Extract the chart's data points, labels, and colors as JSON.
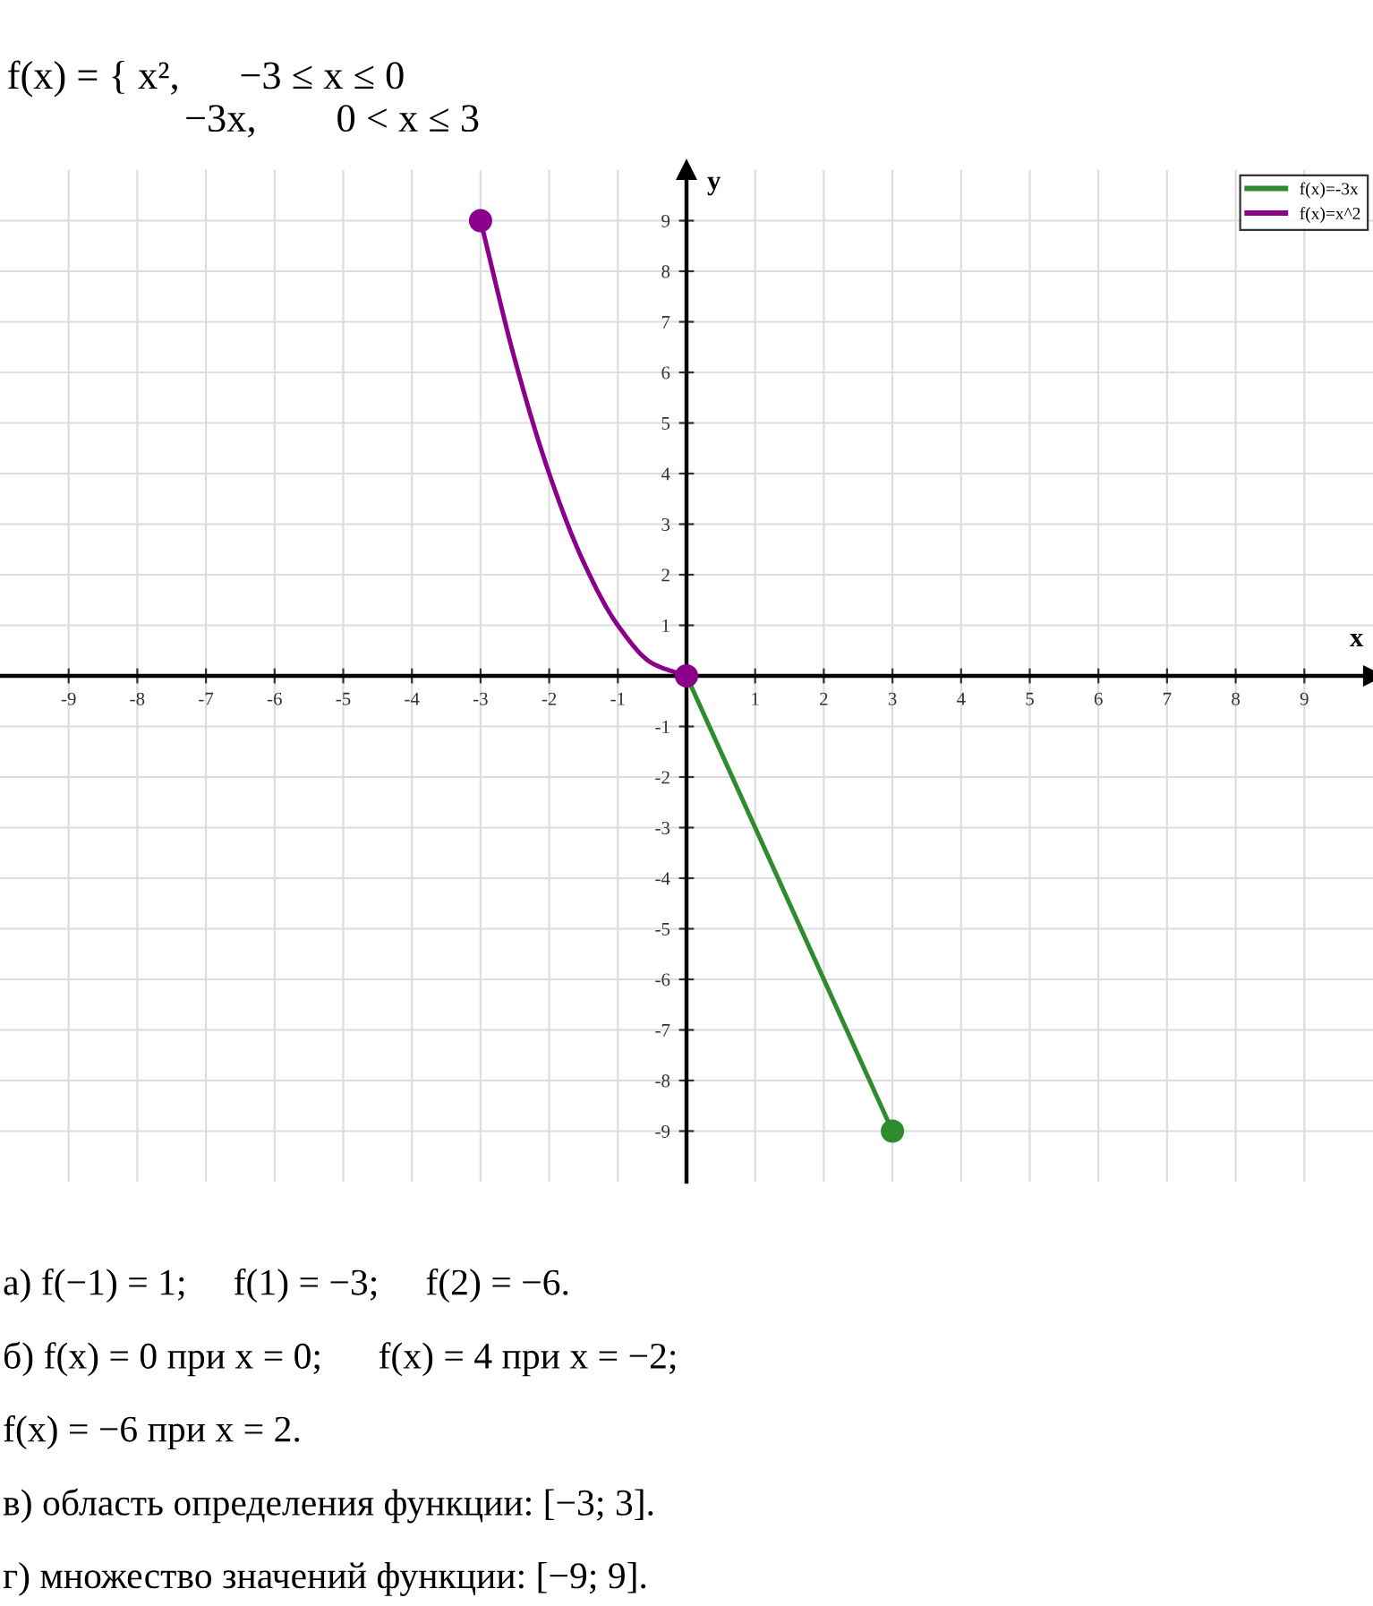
{
  "chart_data": {
    "type": "line",
    "title": "f(x) = { x²,      −3 ≤ x ≤ 0",
    "subtitle": "−3x,        0 < x ≤ 3",
    "xlabel": "x",
    "ylabel": "y",
    "xlim": [
      -10,
      10
    ],
    "ylim": [
      -10,
      10
    ],
    "xticks": [
      -9,
      -8,
      -7,
      -6,
      -5,
      -4,
      -3,
      -2,
      -1,
      1,
      2,
      3,
      4,
      5,
      6,
      7,
      8,
      9
    ],
    "yticks": [
      -9,
      -8,
      -7,
      -6,
      -5,
      -4,
      -3,
      -2,
      -1,
      1,
      2,
      3,
      4,
      5,
      6,
      7,
      8,
      9
    ],
    "grid": true,
    "legend": "top right",
    "series": [
      {
        "name": "f(x)=-3x",
        "color": "#2e8b2e",
        "x": [
          0,
          3
        ],
        "values": [
          0,
          -9
        ]
      },
      {
        "name": "f(x)=x^2",
        "color": "#8b008b",
        "x": [
          -3,
          -2.5,
          -2,
          -1.5,
          -1,
          -0.5,
          0
        ],
        "values": [
          9,
          6.25,
          4,
          2.25,
          1,
          0.25,
          0
        ]
      },
      {
        "type": "scatter",
        "color": "#2e8b2e",
        "x": [
          3
        ],
        "values": [
          -9
        ],
        "marker": "circle"
      },
      {
        "type": "scatter",
        "color": "#8b008b",
        "x": [
          -3,
          0
        ],
        "values": [
          9,
          0
        ],
        "marker": "circle"
      }
    ],
    "annotations": [
      "а) f(−1) = 1;     f(1) = −3;     f(2) = −6.",
      "б) f(x) = 0 при x = 0;      f(x) = 4 при x = −2;",
      "f(x) = −6 при x = 2.",
      "в) область определения функции: [−3; 3].",
      "г) множество значений функции: [−9; 9]."
    ]
  }
}
